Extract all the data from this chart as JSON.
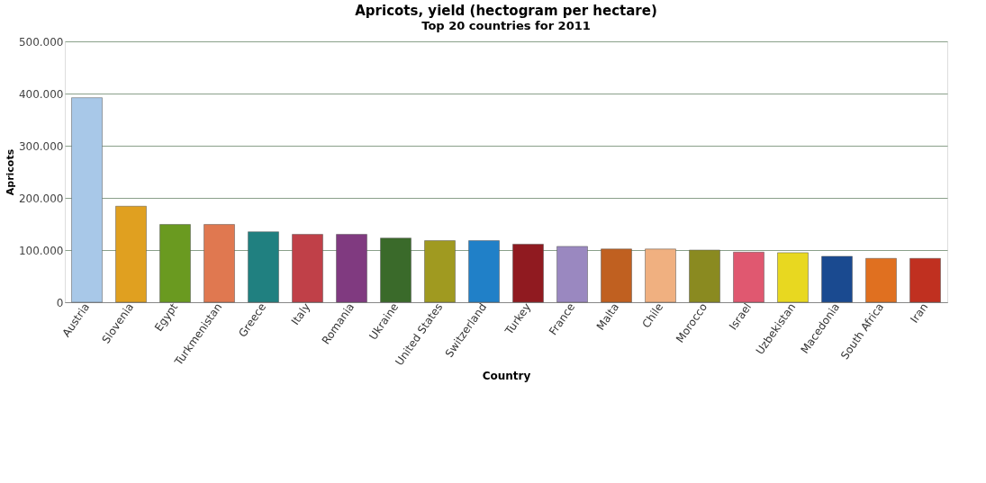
{
  "chart_data": {
    "type": "bar",
    "title": "Apricots, yield (hectogram per hectare)",
    "subtitle": "Top 20 countries for 2011",
    "xlabel": "Country",
    "ylabel": "Apricots",
    "categories": [
      "Austria",
      "Slovenia",
      "Egypt",
      "Turkmenistan",
      "Greece",
      "Italy",
      "Romania",
      "Ukraine",
      "United States",
      "Switzerland",
      "Turkey",
      "France",
      "Malta",
      "Chile",
      "Morocco",
      "Israel",
      "Uzbekistan",
      "Macedonia",
      "South Africa",
      "Iran"
    ],
    "values": [
      392000,
      184000,
      149000,
      149000,
      135000,
      130000,
      130000,
      123000,
      118000,
      118000,
      111000,
      107000,
      102000,
      102000,
      100000,
      96000,
      95000,
      88000,
      84000,
      84000
    ],
    "colors": [
      "#a8c8e8",
      "#e0a020",
      "#6a9a20",
      "#e07850",
      "#208080",
      "#c04048",
      "#803a80",
      "#3a6a2a",
      "#a09a20",
      "#2080c8",
      "#901a20",
      "#9a88c0",
      "#c06020",
      "#f0b080",
      "#8a8a20",
      "#e05870",
      "#e8d820",
      "#1a4a90",
      "#e07020",
      "#c03020"
    ],
    "ylim": [
      0,
      500000
    ],
    "yticks": [
      {
        "value": 0,
        "label": "0"
      },
      {
        "value": 100000,
        "label": "100.000"
      },
      {
        "value": 200000,
        "label": "200.000"
      },
      {
        "value": 300000,
        "label": "300.000"
      },
      {
        "value": 400000,
        "label": "400.000"
      },
      {
        "value": 500000,
        "label": "500.000"
      }
    ],
    "grid": "y"
  }
}
